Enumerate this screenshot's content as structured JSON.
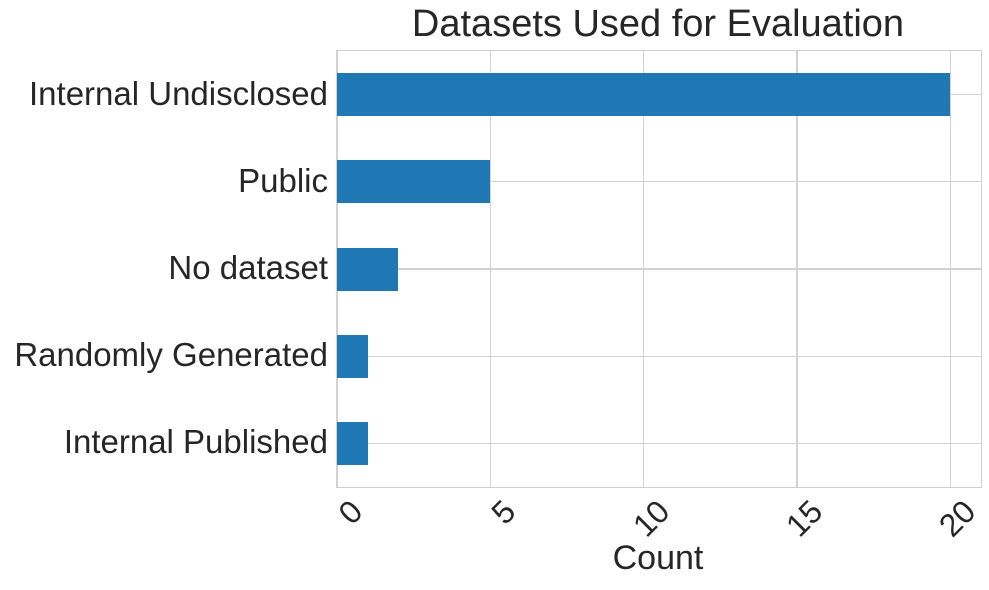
{
  "chart_data": {
    "type": "bar",
    "orientation": "horizontal",
    "title": "Datasets Used for Evaluation",
    "xlabel": "Count",
    "ylabel": "",
    "categories": [
      "Internal Undisclosed",
      "Public",
      "No dataset",
      "Randomly Generated",
      "Internal Published"
    ],
    "values": [
      20,
      5,
      2,
      1,
      1
    ],
    "xticks": [
      "0",
      "5",
      "10",
      "15",
      "20"
    ],
    "xtick_values": [
      0,
      5,
      10,
      15,
      20
    ],
    "xlim": [
      0,
      21
    ],
    "grid": true,
    "legend": false,
    "bar_color": "#1f77b4",
    "grid_color": "#d2d2d2",
    "axis_edge_color": "#cfcfcf",
    "text_color": "#262626"
  }
}
